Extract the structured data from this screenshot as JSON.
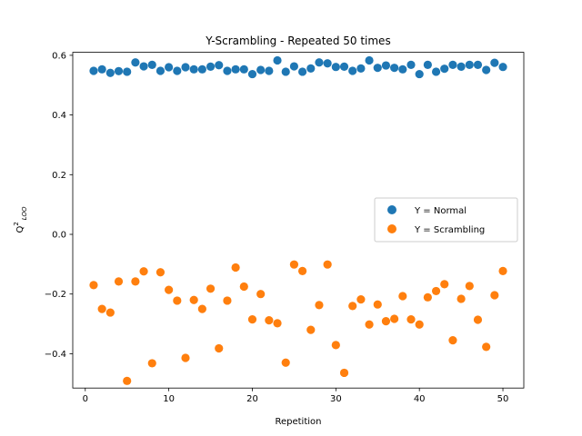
{
  "chart_data": {
    "type": "scatter",
    "title": "Y-Scrambling - Repeated 50 times",
    "xlabel": "Repetition",
    "ylabel": "Q",
    "ylabel_sup": "2",
    "ylabel_sub": "LOO",
    "xlim": [
      -1.5,
      52.5
    ],
    "ylim": [
      -0.515,
      0.61
    ],
    "xticks": [
      0,
      10,
      20,
      30,
      40,
      50
    ],
    "yticks": [
      -0.4,
      -0.2,
      0.0,
      0.2,
      0.4,
      0.6
    ],
    "ytick_labels": [
      "−0.4",
      "−0.2",
      "0.0",
      "0.2",
      "0.4",
      "0.6"
    ],
    "grid": false,
    "legend_position": "right",
    "x": [
      1,
      2,
      3,
      4,
      5,
      6,
      7,
      8,
      9,
      10,
      11,
      12,
      13,
      14,
      15,
      16,
      17,
      18,
      19,
      20,
      21,
      22,
      23,
      24,
      25,
      26,
      27,
      28,
      29,
      30,
      31,
      32,
      33,
      34,
      35,
      36,
      37,
      38,
      39,
      40,
      41,
      42,
      43,
      44,
      45,
      46,
      47,
      48,
      49,
      50
    ],
    "series": [
      {
        "name": "Y = Normal",
        "color": "#1f77b4",
        "values": [
          0.548,
          0.553,
          0.541,
          0.547,
          0.545,
          0.576,
          0.563,
          0.568,
          0.548,
          0.56,
          0.548,
          0.56,
          0.553,
          0.553,
          0.562,
          0.567,
          0.548,
          0.553,
          0.553,
          0.537,
          0.551,
          0.548,
          0.583,
          0.545,
          0.563,
          0.545,
          0.556,
          0.576,
          0.573,
          0.561,
          0.562,
          0.548,
          0.556,
          0.583,
          0.558,
          0.566,
          0.558,
          0.553,
          0.568,
          0.537,
          0.568,
          0.545,
          0.555,
          0.568,
          0.562,
          0.568,
          0.568,
          0.551,
          0.575,
          0.561
        ]
      },
      {
        "name": "Y = Scrambling",
        "color": "#ff7f0e",
        "values": [
          -0.17,
          -0.25,
          -0.262,
          -0.158,
          -0.491,
          -0.158,
          -0.124,
          -0.432,
          -0.127,
          -0.186,
          -0.222,
          -0.414,
          -0.22,
          -0.25,
          -0.182,
          -0.382,
          -0.222,
          -0.111,
          -0.175,
          -0.285,
          -0.2,
          -0.288,
          -0.298,
          -0.43,
          -0.101,
          -0.123,
          -0.32,
          -0.237,
          -0.101,
          -0.371,
          -0.464,
          -0.24,
          -0.218,
          -0.302,
          -0.235,
          -0.291,
          -0.283,
          -0.207,
          -0.285,
          -0.302,
          -0.211,
          -0.19,
          -0.167,
          -0.355,
          -0.216,
          -0.173,
          -0.286,
          -0.377,
          -0.204,
          -0.123
        ]
      }
    ]
  }
}
